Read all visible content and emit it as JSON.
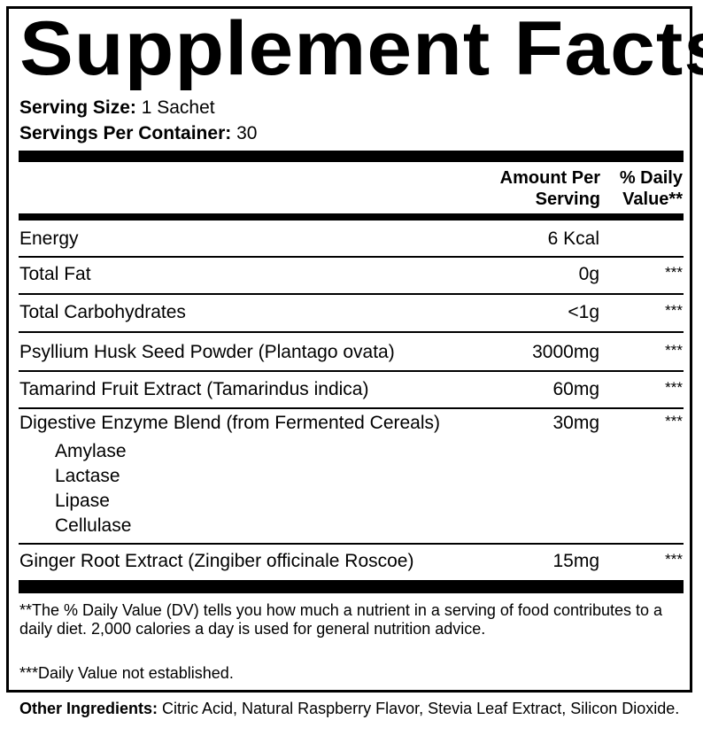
{
  "title": "Supplement Facts",
  "serving": {
    "size_label": "Serving Size:",
    "size_value": "1 Sachet",
    "per_container_label": "Servings Per Container:",
    "per_container_value": "30"
  },
  "header": {
    "amount_line1": "Amount Per",
    "amount_line2": "Serving",
    "dv_line1": "% Daily",
    "dv_line2": "Value**"
  },
  "rows": [
    {
      "name": "Energy",
      "amount": "6 Kcal",
      "dv": ""
    },
    {
      "name": "Total Fat",
      "amount": "0g",
      "dv": "***"
    },
    {
      "name": "Total Carbohydrates",
      "amount": "<1g",
      "dv": "***"
    },
    {
      "name": "Psyllium Husk Seed Powder (Plantago ovata)",
      "amount": "3000mg",
      "dv": "***"
    },
    {
      "name": "Tamarind Fruit Extract (Tamarindus indica)",
      "amount": "60mg",
      "dv": "***"
    },
    {
      "name": "Digestive Enzyme Blend (from Fermented Cereals)",
      "amount": "30mg",
      "dv": "***"
    },
    {
      "name": "Ginger Root Extract (Zingiber officinale Roscoe)",
      "amount": "15mg",
      "dv": "***"
    }
  ],
  "enzymes": [
    "Amylase",
    "Lactase",
    "Lipase",
    "Cellulase"
  ],
  "footnotes": {
    "dv_note": "**The % Daily Value (DV) tells you how much a nutrient in a serving of food contributes to a daily diet. 2,000 calories a day is used for general nutrition advice.",
    "not_established": "***Daily Value not established."
  },
  "other_ingredients": {
    "label": "Other Ingredients:",
    "value": "Citric Acid, Natural Raspberry Flavor, Stevia Leaf Extract, Silicon Dioxide."
  }
}
